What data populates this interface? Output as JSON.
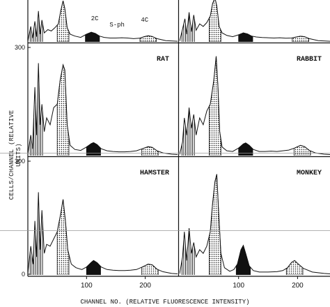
{
  "chart_data": {
    "type": "histogram-panels",
    "ylabel": "CELLS/CHANNEL (RELATIVE UNITS)",
    "xlabel": "CHANNEL NO. (RELATIVE FLUORESCENCE INTENSITY)",
    "x_ticks": [
      100,
      200
    ],
    "y_ticks": [
      0,
      300
    ],
    "xlim": [
      0,
      255
    ],
    "ylim": [
      0,
      300
    ],
    "peak_labels": [
      "2C",
      "S-ph",
      "4C"
    ],
    "panels": [
      {
        "name": "",
        "peaks": {
          "low": 18,
          "high": 52,
          "main": 62,
          "two_c": 110,
          "four_c": 205
        },
        "profile": [
          [
            0,
            5
          ],
          [
            5,
            120
          ],
          [
            8,
            30
          ],
          [
            12,
            160
          ],
          [
            15,
            40
          ],
          [
            18,
            240
          ],
          [
            21,
            60
          ],
          [
            24,
            170
          ],
          [
            28,
            70
          ],
          [
            34,
            95
          ],
          [
            40,
            85
          ],
          [
            46,
            110
          ],
          [
            52,
            140
          ],
          [
            56,
            240
          ],
          [
            60,
            320
          ],
          [
            63,
            260
          ],
          [
            67,
            110
          ],
          [
            72,
            60
          ],
          [
            80,
            45
          ],
          [
            90,
            35
          ],
          [
            100,
            60
          ],
          [
            108,
            75
          ],
          [
            115,
            65
          ],
          [
            122,
            45
          ],
          [
            130,
            35
          ],
          [
            140,
            30
          ],
          [
            150,
            30
          ],
          [
            160,
            32
          ],
          [
            170,
            30
          ],
          [
            180,
            25
          ],
          [
            190,
            28
          ],
          [
            198,
            40
          ],
          [
            205,
            48
          ],
          [
            212,
            42
          ],
          [
            220,
            25
          ],
          [
            235,
            10
          ],
          [
            255,
            5
          ]
        ]
      },
      {
        "name": "",
        "peaks": {
          "low": 18,
          "high": 52,
          "main": 62,
          "two_c": 112,
          "four_c": 205
        },
        "profile": [
          [
            0,
            5
          ],
          [
            5,
            100
          ],
          [
            9,
            180
          ],
          [
            12,
            60
          ],
          [
            16,
            230
          ],
          [
            20,
            80
          ],
          [
            24,
            210
          ],
          [
            28,
            90
          ],
          [
            34,
            140
          ],
          [
            40,
            120
          ],
          [
            46,
            150
          ],
          [
            52,
            200
          ],
          [
            56,
            300
          ],
          [
            60,
            340
          ],
          [
            63,
            280
          ],
          [
            67,
            120
          ],
          [
            72,
            70
          ],
          [
            80,
            50
          ],
          [
            90,
            40
          ],
          [
            100,
            55
          ],
          [
            108,
            70
          ],
          [
            115,
            62
          ],
          [
            122,
            45
          ],
          [
            130,
            38
          ],
          [
            140,
            34
          ],
          [
            150,
            32
          ],
          [
            160,
            30
          ],
          [
            170,
            32
          ],
          [
            180,
            28
          ],
          [
            190,
            30
          ],
          [
            198,
            38
          ],
          [
            205,
            44
          ],
          [
            212,
            40
          ],
          [
            220,
            25
          ],
          [
            235,
            10
          ],
          [
            255,
            5
          ]
        ]
      },
      {
        "name": "RAT",
        "peaks": {
          "low": 18,
          "high": 57,
          "main": 62,
          "two_c": 112,
          "four_c": 208
        },
        "profile": [
          [
            0,
            4
          ],
          [
            5,
            60
          ],
          [
            8,
            20
          ],
          [
            12,
            200
          ],
          [
            15,
            60
          ],
          [
            18,
            270
          ],
          [
            21,
            90
          ],
          [
            24,
            150
          ],
          [
            28,
            70
          ],
          [
            32,
            110
          ],
          [
            38,
            90
          ],
          [
            44,
            140
          ],
          [
            50,
            150
          ],
          [
            55,
            220
          ],
          [
            60,
            265
          ],
          [
            63,
            250
          ],
          [
            67,
            90
          ],
          [
            72,
            30
          ],
          [
            80,
            18
          ],
          [
            90,
            15
          ],
          [
            100,
            25
          ],
          [
            108,
            35
          ],
          [
            112,
            38
          ],
          [
            118,
            32
          ],
          [
            125,
            20
          ],
          [
            135,
            14
          ],
          [
            145,
            12
          ],
          [
            155,
            11
          ],
          [
            165,
            11
          ],
          [
            175,
            12
          ],
          [
            185,
            14
          ],
          [
            195,
            20
          ],
          [
            205,
            26
          ],
          [
            212,
            24
          ],
          [
            220,
            14
          ],
          [
            230,
            8
          ],
          [
            245,
            4
          ],
          [
            255,
            3
          ]
        ]
      },
      {
        "name": "RABBIT",
        "peaks": {
          "low": 18,
          "high": 60,
          "main": 62,
          "two_c": 112,
          "four_c": 208
        },
        "profile": [
          [
            0,
            3
          ],
          [
            5,
            40
          ],
          [
            8,
            110
          ],
          [
            12,
            60
          ],
          [
            16,
            140
          ],
          [
            20,
            80
          ],
          [
            24,
            120
          ],
          [
            28,
            60
          ],
          [
            34,
            110
          ],
          [
            40,
            90
          ],
          [
            46,
            130
          ],
          [
            52,
            150
          ],
          [
            58,
            220
          ],
          [
            62,
            290
          ],
          [
            65,
            200
          ],
          [
            68,
            70
          ],
          [
            72,
            25
          ],
          [
            80,
            14
          ],
          [
            90,
            12
          ],
          [
            100,
            22
          ],
          [
            108,
            34
          ],
          [
            112,
            37
          ],
          [
            118,
            30
          ],
          [
            125,
            18
          ],
          [
            135,
            12
          ],
          [
            145,
            12
          ],
          [
            155,
            13
          ],
          [
            165,
            12
          ],
          [
            175,
            14
          ],
          [
            185,
            16
          ],
          [
            195,
            22
          ],
          [
            205,
            30
          ],
          [
            212,
            26
          ],
          [
            220,
            15
          ],
          [
            230,
            8
          ],
          [
            245,
            4
          ],
          [
            255,
            3
          ]
        ]
      },
      {
        "name": "HAMSTER",
        "peaks": {
          "low": 18,
          "high": 52,
          "main": 62,
          "two_c": 112,
          "four_c": 208
        },
        "profile": [
          [
            0,
            4
          ],
          [
            5,
            80
          ],
          [
            9,
            30
          ],
          [
            12,
            150
          ],
          [
            15,
            50
          ],
          [
            18,
            230
          ],
          [
            21,
            70
          ],
          [
            24,
            180
          ],
          [
            28,
            60
          ],
          [
            32,
            85
          ],
          [
            38,
            80
          ],
          [
            44,
            100
          ],
          [
            50,
            120
          ],
          [
            56,
            170
          ],
          [
            60,
            210
          ],
          [
            64,
            150
          ],
          [
            68,
            70
          ],
          [
            74,
            30
          ],
          [
            82,
            20
          ],
          [
            92,
            15
          ],
          [
            100,
            22
          ],
          [
            108,
            35
          ],
          [
            112,
            40
          ],
          [
            118,
            34
          ],
          [
            125,
            22
          ],
          [
            135,
            15
          ],
          [
            145,
            13
          ],
          [
            155,
            12
          ],
          [
            165,
            12
          ],
          [
            175,
            13
          ],
          [
            185,
            15
          ],
          [
            195,
            22
          ],
          [
            205,
            30
          ],
          [
            212,
            28
          ],
          [
            220,
            16
          ],
          [
            230,
            9
          ],
          [
            245,
            4
          ],
          [
            255,
            3
          ]
        ]
      },
      {
        "name": "MONKEY",
        "peaks": {
          "low": 18,
          "high": 60,
          "main": 62,
          "two_c": 108,
          "four_c": 195
        },
        "profile": [
          [
            0,
            3
          ],
          [
            5,
            50
          ],
          [
            8,
            120
          ],
          [
            12,
            40
          ],
          [
            16,
            130
          ],
          [
            20,
            60
          ],
          [
            24,
            90
          ],
          [
            28,
            50
          ],
          [
            34,
            70
          ],
          [
            40,
            60
          ],
          [
            46,
            80
          ],
          [
            52,
            120
          ],
          [
            56,
            200
          ],
          [
            60,
            260
          ],
          [
            63,
            280
          ],
          [
            66,
            180
          ],
          [
            70,
            60
          ],
          [
            76,
            20
          ],
          [
            85,
            10
          ],
          [
            92,
            15
          ],
          [
            98,
            30
          ],
          [
            104,
            70
          ],
          [
            108,
            82
          ],
          [
            112,
            60
          ],
          [
            118,
            25
          ],
          [
            125,
            12
          ],
          [
            135,
            8
          ],
          [
            150,
            8
          ],
          [
            165,
            9
          ],
          [
            175,
            12
          ],
          [
            183,
            20
          ],
          [
            190,
            35
          ],
          [
            195,
            40
          ],
          [
            200,
            32
          ],
          [
            210,
            18
          ],
          [
            225,
            8
          ],
          [
            245,
            4
          ],
          [
            255,
            3
          ]
        ]
      }
    ]
  }
}
